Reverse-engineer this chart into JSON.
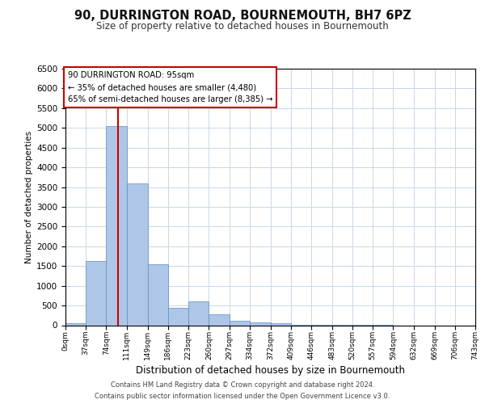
{
  "title": "90, DURRINGTON ROAD, BOURNEMOUTH, BH7 6PZ",
  "subtitle": "Size of property relative to detached houses in Bournemouth",
  "xlabel": "Distribution of detached houses by size in Bournemouth",
  "ylabel": "Number of detached properties",
  "footer1": "Contains HM Land Registry data © Crown copyright and database right 2024.",
  "footer2": "Contains public sector information licensed under the Open Government Licence v3.0.",
  "annotation_text": "90 DURRINGTON ROAD: 95sqm\n← 35% of detached houses are smaller (4,480)\n65% of semi-detached houses are larger (8,385) →",
  "property_size": 95,
  "bin_edges": [
    0,
    37,
    74,
    111,
    149,
    186,
    223,
    260,
    297,
    334,
    372,
    409,
    446,
    483,
    520,
    557,
    594,
    632,
    669,
    706,
    743
  ],
  "bar_heights": [
    50,
    1620,
    5050,
    3600,
    1550,
    430,
    600,
    270,
    120,
    80,
    50,
    10,
    5,
    2,
    2,
    1,
    0,
    0,
    0,
    0
  ],
  "bar_color": "#aec6e8",
  "bar_edge_color": "#5a8fc0",
  "line_color": "#cc0000",
  "anno_box_edge": "#cc0000",
  "anno_box_face": "#ffffff",
  "grid_color": "#c8d8e8",
  "ylim_max": 6500
}
